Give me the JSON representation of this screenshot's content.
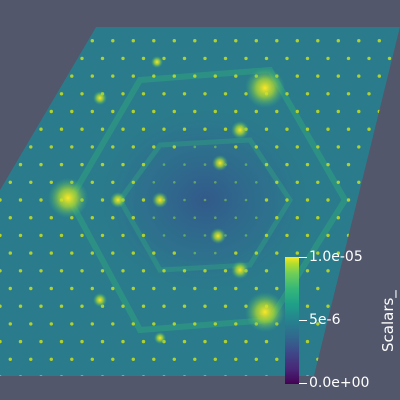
{
  "colorbar": {
    "title": "Scalars_",
    "max_label": "1.0e-05",
    "mid_label": "5e-6",
    "min_label": "0.0e+00",
    "colormap": "viridis"
  },
  "colors": {
    "background": "#52576b",
    "field_base": "#2a7c8c",
    "spot_bright": "#fde725"
  }
}
